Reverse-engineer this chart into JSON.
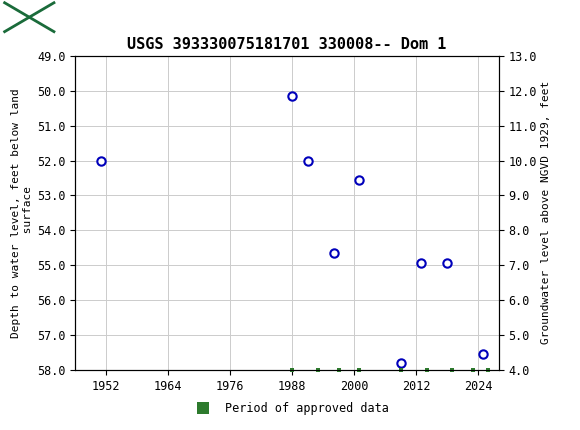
{
  "title": "USGS 393330075181701 330008-- Dom 1",
  "ylabel_left": "Depth to water level, feet below land\n surface",
  "ylabel_right": "Groundwater level above NGVD 1929, feet",
  "ylim_left": [
    49.0,
    58.0
  ],
  "ylim_right": [
    4.0,
    13.0
  ],
  "xlim": [
    1946,
    2028
  ],
  "xticks": [
    1952,
    1964,
    1976,
    1988,
    2000,
    2012,
    2024
  ],
  "yticks_left": [
    49.0,
    50.0,
    51.0,
    52.0,
    53.0,
    54.0,
    55.0,
    56.0,
    57.0,
    58.0
  ],
  "yticks_right": [
    4.0,
    5.0,
    6.0,
    7.0,
    8.0,
    9.0,
    10.0,
    11.0,
    12.0,
    13.0
  ],
  "data_x": [
    1951,
    1988,
    1991,
    1996,
    2001,
    2009,
    2013,
    2018,
    2025
  ],
  "data_y_left": [
    52.0,
    50.15,
    52.0,
    54.65,
    52.55,
    57.8,
    54.95,
    54.95,
    57.55
  ],
  "marker_size": 6,
  "marker_facecolor": "white",
  "marker_edgecolor": "#0000bb",
  "marker_edgewidth": 1.5,
  "green_bar_x": [
    1988,
    1993,
    1997,
    2001,
    2009,
    2014,
    2019,
    2023,
    2026
  ],
  "green_bar_color": "#2d7a2d",
  "header_color": "#1a6b3a",
  "grid_color": "#cccccc",
  "bg_color": "#ffffff",
  "legend_label": "Period of approved data",
  "title_fontsize": 11,
  "tick_fontsize": 8.5,
  "axis_label_fontsize": 8
}
